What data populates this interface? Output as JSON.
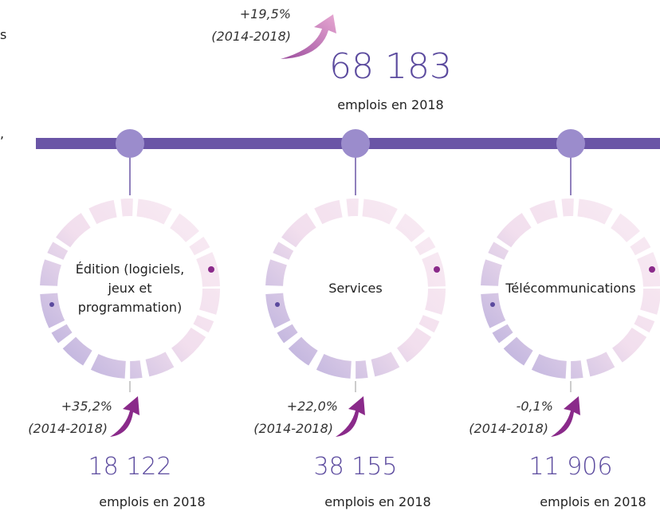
{
  "left_fragments": [
    "s",
    ","
  ],
  "total": {
    "change": "+19,5%",
    "period": "(2014-2018)",
    "value": "68 183",
    "unit": "emplois en 2018"
  },
  "sectors": [
    {
      "label": "Édition (logiciels, jeux et programmation)",
      "change": "+35,2%",
      "period": "(2014-2018)",
      "value": "18 122",
      "unit": "emplois en 2018"
    },
    {
      "label": "Services",
      "change": "+22,0%",
      "period": "(2014-2018)",
      "value": "38 155",
      "unit": "emplois en 2018"
    },
    {
      "label": "Télécommunications",
      "change": "-0,1%",
      "period": "(2014-2018)",
      "value": "11 906",
      "unit": "emplois en 2018"
    }
  ]
}
